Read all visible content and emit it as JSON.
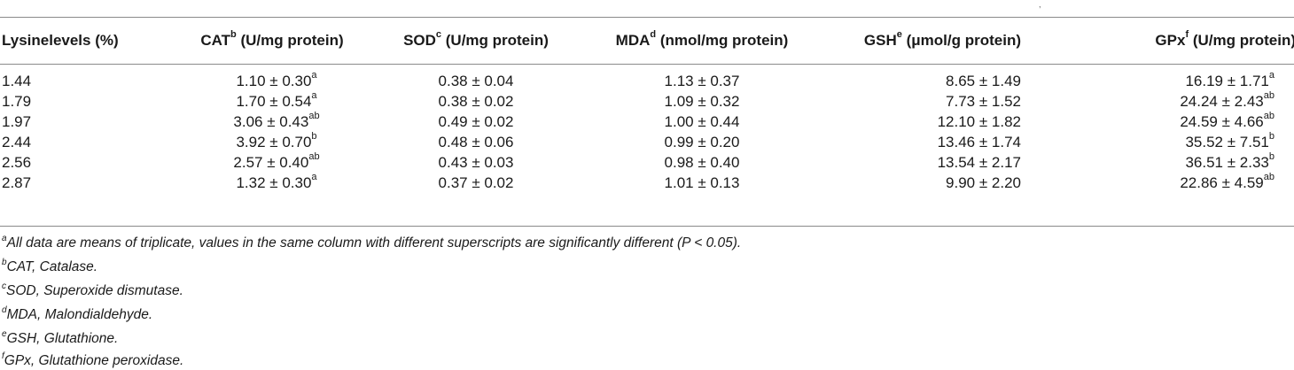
{
  "table": {
    "headers": [
      {
        "label": "Lysinelevels (%)",
        "sup": ""
      },
      {
        "label": "CAT",
        "sup": "b",
        "unit": " (U/mg protein)"
      },
      {
        "label": "SOD",
        "sup": "c",
        "unit": " (U/mg protein)"
      },
      {
        "label": "MDA",
        "sup": "d",
        "unit": " (nmol/mg protein)"
      },
      {
        "label": "GSH",
        "sup": "e",
        "unit": " (μmol/g protein)"
      },
      {
        "label": "GPx",
        "sup": "f",
        "unit": " (U/mg protein)"
      }
    ],
    "rows": [
      [
        {
          "v": "1.44"
        },
        {
          "v": "1.10 ± 0.30",
          "s": "a"
        },
        {
          "v": "0.38 ± 0.04"
        },
        {
          "v": "1.13 ± 0.37"
        },
        {
          "v": "8.65 ± 1.49"
        },
        {
          "v": "16.19 ± 1.71",
          "s": "a"
        }
      ],
      [
        {
          "v": "1.79"
        },
        {
          "v": "1.70 ± 0.54",
          "s": "a"
        },
        {
          "v": "0.38 ± 0.02"
        },
        {
          "v": "1.09 ± 0.32"
        },
        {
          "v": "7.73 ± 1.52"
        },
        {
          "v": "24.24 ± 2.43",
          "s": "ab"
        }
      ],
      [
        {
          "v": "1.97"
        },
        {
          "v": "3.06 ± 0.43",
          "s": "ab"
        },
        {
          "v": "0.49 ± 0.02"
        },
        {
          "v": "1.00 ± 0.44"
        },
        {
          "v": "12.10 ± 1.82"
        },
        {
          "v": "24.59 ± 4.66",
          "s": "ab"
        }
      ],
      [
        {
          "v": "2.44"
        },
        {
          "v": "3.92 ± 0.70",
          "s": "b"
        },
        {
          "v": "0.48 ± 0.06"
        },
        {
          "v": "0.99 ± 0.20"
        },
        {
          "v": "13.46 ± 1.74"
        },
        {
          "v": "35.52 ± 7.51",
          "s": "b"
        }
      ],
      [
        {
          "v": "2.56"
        },
        {
          "v": "2.57 ± 0.40",
          "s": "ab"
        },
        {
          "v": "0.43 ± 0.03"
        },
        {
          "v": "0.98 ± 0.40"
        },
        {
          "v": "13.54 ± 2.17"
        },
        {
          "v": "36.51 ± 2.33",
          "s": "b"
        }
      ],
      [
        {
          "v": "2.87"
        },
        {
          "v": "1.32 ± 0.30",
          "s": "a"
        },
        {
          "v": "0.37 ± 0.02"
        },
        {
          "v": "1.01 ± 0.13"
        },
        {
          "v": "9.90 ± 2.20"
        },
        {
          "v": "22.86 ± 4.59",
          "s": "ab"
        }
      ]
    ]
  },
  "footnotes": [
    {
      "sup": "a",
      "text": "All data are means of triplicate, values in the same column with different superscripts are significantly different (P < 0.05)."
    },
    {
      "sup": "b",
      "text": "CAT, Catalase."
    },
    {
      "sup": "c",
      "text": "SOD, Superoxide dismutase."
    },
    {
      "sup": "d",
      "text": "MDA, Malondialdehyde."
    },
    {
      "sup": "e",
      "text": "GSH, Glutathione."
    },
    {
      "sup": "f",
      "text": "GPx, Glutathione peroxidase."
    }
  ]
}
